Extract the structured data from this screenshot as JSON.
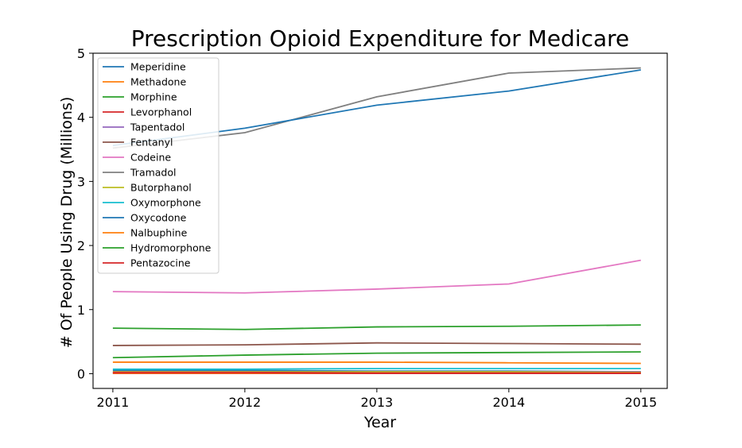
{
  "chart_data": {
    "type": "line",
    "title": "Prescription Opioid Expenditure for Medicare",
    "xlabel": "Year",
    "ylabel": "# Of People Using Drug (Millions)",
    "x": [
      "2011",
      "2012",
      "2013",
      "2014",
      "2015"
    ],
    "x_ticks": [
      "2011",
      "2012",
      "2013",
      "2014",
      "2015"
    ],
    "y_ticks": [
      "0",
      "1",
      "2",
      "3",
      "4",
      "5"
    ],
    "xlim": [
      2010.85,
      2015.2
    ],
    "ylim": [
      -0.23,
      5.0
    ],
    "grid": false,
    "legend_position": "top-left",
    "series": [
      {
        "name": "Meperidine",
        "color": "#1f77b4",
        "values": [
          0.05,
          0.05,
          0.04,
          0.04,
          0.03
        ]
      },
      {
        "name": "Methadone",
        "color": "#ff7f0e",
        "values": [
          0.18,
          0.18,
          0.18,
          0.17,
          0.16
        ]
      },
      {
        "name": "Morphine",
        "color": "#2ca02c",
        "values": [
          0.25,
          0.29,
          0.32,
          0.33,
          0.34
        ]
      },
      {
        "name": "Levorphanol",
        "color": "#d62728",
        "values": [
          0.005,
          0.005,
          0.005,
          0.005,
          0.005
        ]
      },
      {
        "name": "Tapentadol",
        "color": "#9467bd",
        "values": [
          0.01,
          0.02,
          0.03,
          0.03,
          0.03
        ]
      },
      {
        "name": "Fentanyl",
        "color": "#8c564b",
        "values": [
          0.44,
          0.45,
          0.48,
          0.47,
          0.46
        ]
      },
      {
        "name": "Codeine",
        "color": "#e377c2",
        "values": [
          1.28,
          1.26,
          1.32,
          1.4,
          1.77
        ]
      },
      {
        "name": "Tramadol",
        "color": "#7f7f7f",
        "values": [
          3.52,
          3.76,
          4.32,
          4.69,
          4.77
        ]
      },
      {
        "name": "Butorphanol",
        "color": "#bcbd22",
        "values": [
          0.03,
          0.03,
          0.03,
          0.03,
          0.02
        ]
      },
      {
        "name": "Oxymorphone",
        "color": "#17becf",
        "values": [
          0.07,
          0.07,
          0.08,
          0.08,
          0.08
        ]
      },
      {
        "name": "Oxycodone",
        "color": "#1f77b4",
        "values": [
          3.56,
          3.83,
          4.19,
          4.41,
          4.74
        ]
      },
      {
        "name": "Nalbuphine",
        "color": "#ff7f0e",
        "values": [
          0.01,
          0.01,
          0.01,
          0.01,
          0.01
        ]
      },
      {
        "name": "Hydromorphone",
        "color": "#2ca02c",
        "values": [
          0.71,
          0.69,
          0.73,
          0.74,
          0.76
        ]
      },
      {
        "name": "Pentazocine",
        "color": "#d62728",
        "values": [
          0.02,
          0.02,
          0.01,
          0.01,
          0.01
        ]
      }
    ]
  }
}
